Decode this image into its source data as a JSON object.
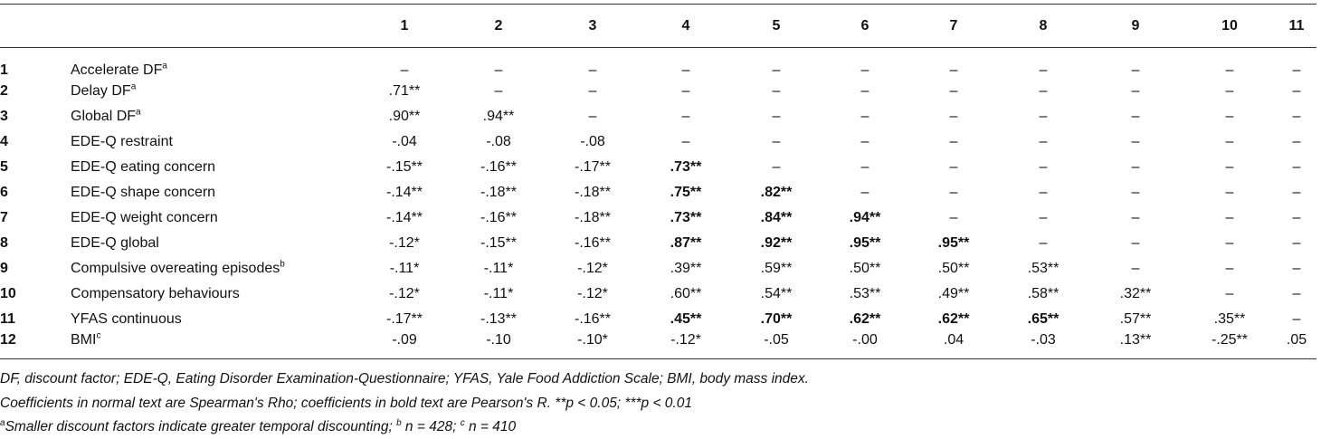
{
  "table": {
    "columns": [
      "1",
      "2",
      "3",
      "4",
      "5",
      "6",
      "7",
      "8",
      "9",
      "10",
      "11"
    ],
    "rows": [
      {
        "number": "1",
        "label": {
          "text": "Accelerate DF",
          "sup": "a"
        },
        "cells": [
          "–",
          "–",
          "–",
          "–",
          "–",
          "–",
          "–",
          "–",
          "–",
          "–",
          "–"
        ]
      },
      {
        "number": "2",
        "label": {
          "text": "Delay DF",
          "sup": "a"
        },
        "cells": [
          ".71**",
          "–",
          "–",
          "–",
          "–",
          "–",
          "–",
          "–",
          "–",
          "–",
          "–"
        ]
      },
      {
        "number": "3",
        "label": {
          "text": "Global DF",
          "sup": "a"
        },
        "cells": [
          ".90**",
          ".94**",
          "–",
          "–",
          "–",
          "–",
          "–",
          "–",
          "–",
          "–",
          "–"
        ]
      },
      {
        "number": "4",
        "label": {
          "text": "EDE-Q restraint"
        },
        "cells": [
          "-.04",
          "-.08",
          "-.08",
          "–",
          "–",
          "–",
          "–",
          "–",
          "–",
          "–",
          "–"
        ]
      },
      {
        "number": "5",
        "label": {
          "text": "EDE-Q eating concern"
        },
        "cells": [
          "-.15**",
          "-.16**",
          "-.17**",
          {
            "text": ".73**",
            "bold": true
          },
          "–",
          "–",
          "–",
          "–",
          "–",
          "–",
          "–"
        ]
      },
      {
        "number": "6",
        "label": {
          "text": "EDE-Q shape concern"
        },
        "cells": [
          "-.14**",
          "-.18**",
          "-.18**",
          {
            "text": ".75**",
            "bold": true
          },
          {
            "text": ".82**",
            "bold": true
          },
          "–",
          "–",
          "–",
          "–",
          "–",
          "–"
        ]
      },
      {
        "number": "7",
        "label": {
          "text": "EDE-Q weight concern"
        },
        "cells": [
          "-.14**",
          "-.16**",
          "-.18**",
          {
            "text": ".73**",
            "bold": true
          },
          {
            "text": ".84**",
            "bold": true
          },
          {
            "text": ".94**",
            "bold": true
          },
          "–",
          "–",
          "–",
          "–",
          "–"
        ]
      },
      {
        "number": "8",
        "label": {
          "text": "EDE-Q global"
        },
        "cells": [
          "-.12*",
          "-.15**",
          "-.16**",
          {
            "text": ".87**",
            "bold": true
          },
          {
            "text": ".92**",
            "bold": true
          },
          {
            "text": ".95**",
            "bold": true
          },
          {
            "text": ".95**",
            "bold": true
          },
          "–",
          "–",
          "–",
          "–"
        ]
      },
      {
        "number": "9",
        "label": {
          "text": "Compulsive overeating episodes",
          "sup": "b"
        },
        "cells": [
          "-.11*",
          "-.11*",
          "-.12*",
          ".39**",
          ".59**",
          ".50**",
          ".50**",
          ".53**",
          "–",
          "–",
          "–"
        ]
      },
      {
        "number": "10",
        "label": {
          "text": "Compensatory behaviours"
        },
        "cells": [
          "-.12*",
          "-.11*",
          "-.12*",
          ".60**",
          ".54**",
          ".53**",
          ".49**",
          ".58**",
          ".32**",
          "–",
          "–"
        ]
      },
      {
        "number": "11",
        "label": {
          "text": "YFAS continuous"
        },
        "cells": [
          "-.17**",
          "-.13**",
          "-.16**",
          {
            "text": ".45**",
            "bold": true
          },
          {
            "text": ".70**",
            "bold": true
          },
          {
            "text": ".62**",
            "bold": true
          },
          {
            "text": ".62**",
            "bold": true
          },
          {
            "text": ".65**",
            "bold": true
          },
          ".57**",
          ".35**",
          "–"
        ]
      },
      {
        "number": "12",
        "label": {
          "text": "BMI",
          "sup": "c"
        },
        "cells": [
          "-.09",
          "-.10",
          "-.10*",
          "-.12*",
          "-.05",
          "-.00",
          ".04",
          "-.03",
          ".13**",
          "-.25**",
          ".05"
        ]
      }
    ]
  },
  "footnotes": [
    "DF, discount factor; EDE-Q, Eating Disorder Examination-Questionnaire; YFAS, Yale Food Addiction Scale; BMI, body mass index.",
    "Coefficients in normal text are Spearman's Rho; coefficients in bold text are Pearson's R. **p < 0.05; ***p < 0.01",
    [
      {
        "sup": "a"
      },
      {
        "text": "Smaller discount factors indicate greater temporal discounting; "
      },
      {
        "sup": "b"
      },
      {
        "text": " n = 428; "
      },
      {
        "sup": "c"
      },
      {
        "text": " n = 410"
      }
    ]
  ]
}
